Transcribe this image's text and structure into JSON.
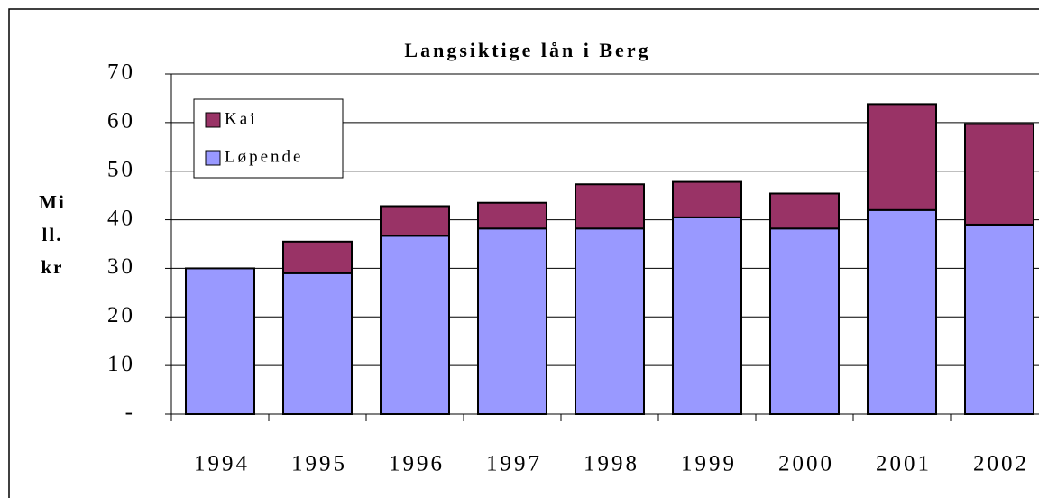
{
  "chart_data": {
    "type": "stacked_bar",
    "title": "Langsiktige lån i Berg",
    "y_label": [
      "Mi",
      "ll.",
      "kr"
    ],
    "categories": [
      "1994",
      "1995",
      "1996",
      "1997",
      "1998",
      "1999",
      "2000",
      "2001",
      "2002"
    ],
    "series": [
      {
        "name": "Løpende",
        "color": "#9999ff",
        "values": [
          30,
          29,
          36.7,
          38.2,
          38.2,
          40.5,
          38.2,
          42,
          39
        ]
      },
      {
        "name": "Kai",
        "color": "#993366",
        "values": [
          0,
          6.5,
          6.1,
          5.3,
          9.1,
          7.3,
          7.2,
          21.8,
          20.7
        ]
      }
    ],
    "ylim": [
      0,
      70
    ],
    "yticks": [
      {
        "value": 0,
        "label": "-"
      },
      10,
      20,
      30,
      40,
      50,
      60,
      70
    ],
    "grid": true
  }
}
